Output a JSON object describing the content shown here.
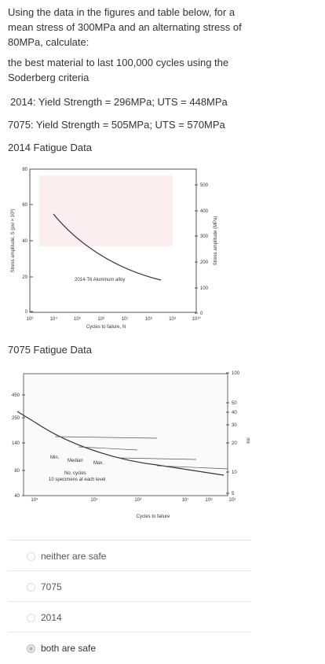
{
  "question": {
    "intro": "Using the data in the figures and table below, for a mean stress of 300MPa and an alternating stress of 80MPa, calculate:",
    "task": "the best material to last 100,000 cycles using the Soderberg criteria",
    "data_2014": "2014: Yield Strength = 296MPa; UTS = 448MPa",
    "data_7075": "7075: Yield Strength = 505MPa; UTS = 570MPa",
    "fig1_title": "2014 Fatigue Data",
    "fig2_title": "7075 Fatigue Data"
  },
  "figures": [
    {
      "y_label": "Stress amplitude, S (psi × 10³)",
      "y2_label": "Stress amplitude (MPa)",
      "x_label": "Cycles to failure, N",
      "curve_label": "2014-T6 Aluminum alloy",
      "yticks": [
        "80",
        "60",
        "40",
        "20",
        "0"
      ],
      "y2ticks": [
        "500",
        "400",
        "300",
        "200",
        "100",
        "0"
      ],
      "xticks": [
        "10³",
        "10⁴",
        "10⁵",
        "10⁶",
        "10⁷",
        "10⁸",
        "10⁹",
        "10¹⁰"
      ]
    },
    {
      "x_label": "Cycles to failure",
      "y2_label": "ksi",
      "annotations": [
        "Min.",
        "Median",
        "Max.",
        "No. cycles",
        "10 specimens at each level"
      ],
      "yticks": [
        "450",
        "250",
        "140",
        "80",
        "40"
      ],
      "y2ticks": [
        "100",
        "50",
        "40",
        "30",
        "20",
        "10",
        "5"
      ],
      "xticks": [
        "10⁴",
        "10⁵",
        "10⁶",
        "10⁷",
        "10⁸",
        "10⁹"
      ]
    }
  ],
  "options": [
    {
      "label": "neither are safe",
      "selected": false
    },
    {
      "label": "7075",
      "selected": false
    },
    {
      "label": "2014",
      "selected": false
    },
    {
      "label": "both are safe",
      "selected": true
    }
  ]
}
